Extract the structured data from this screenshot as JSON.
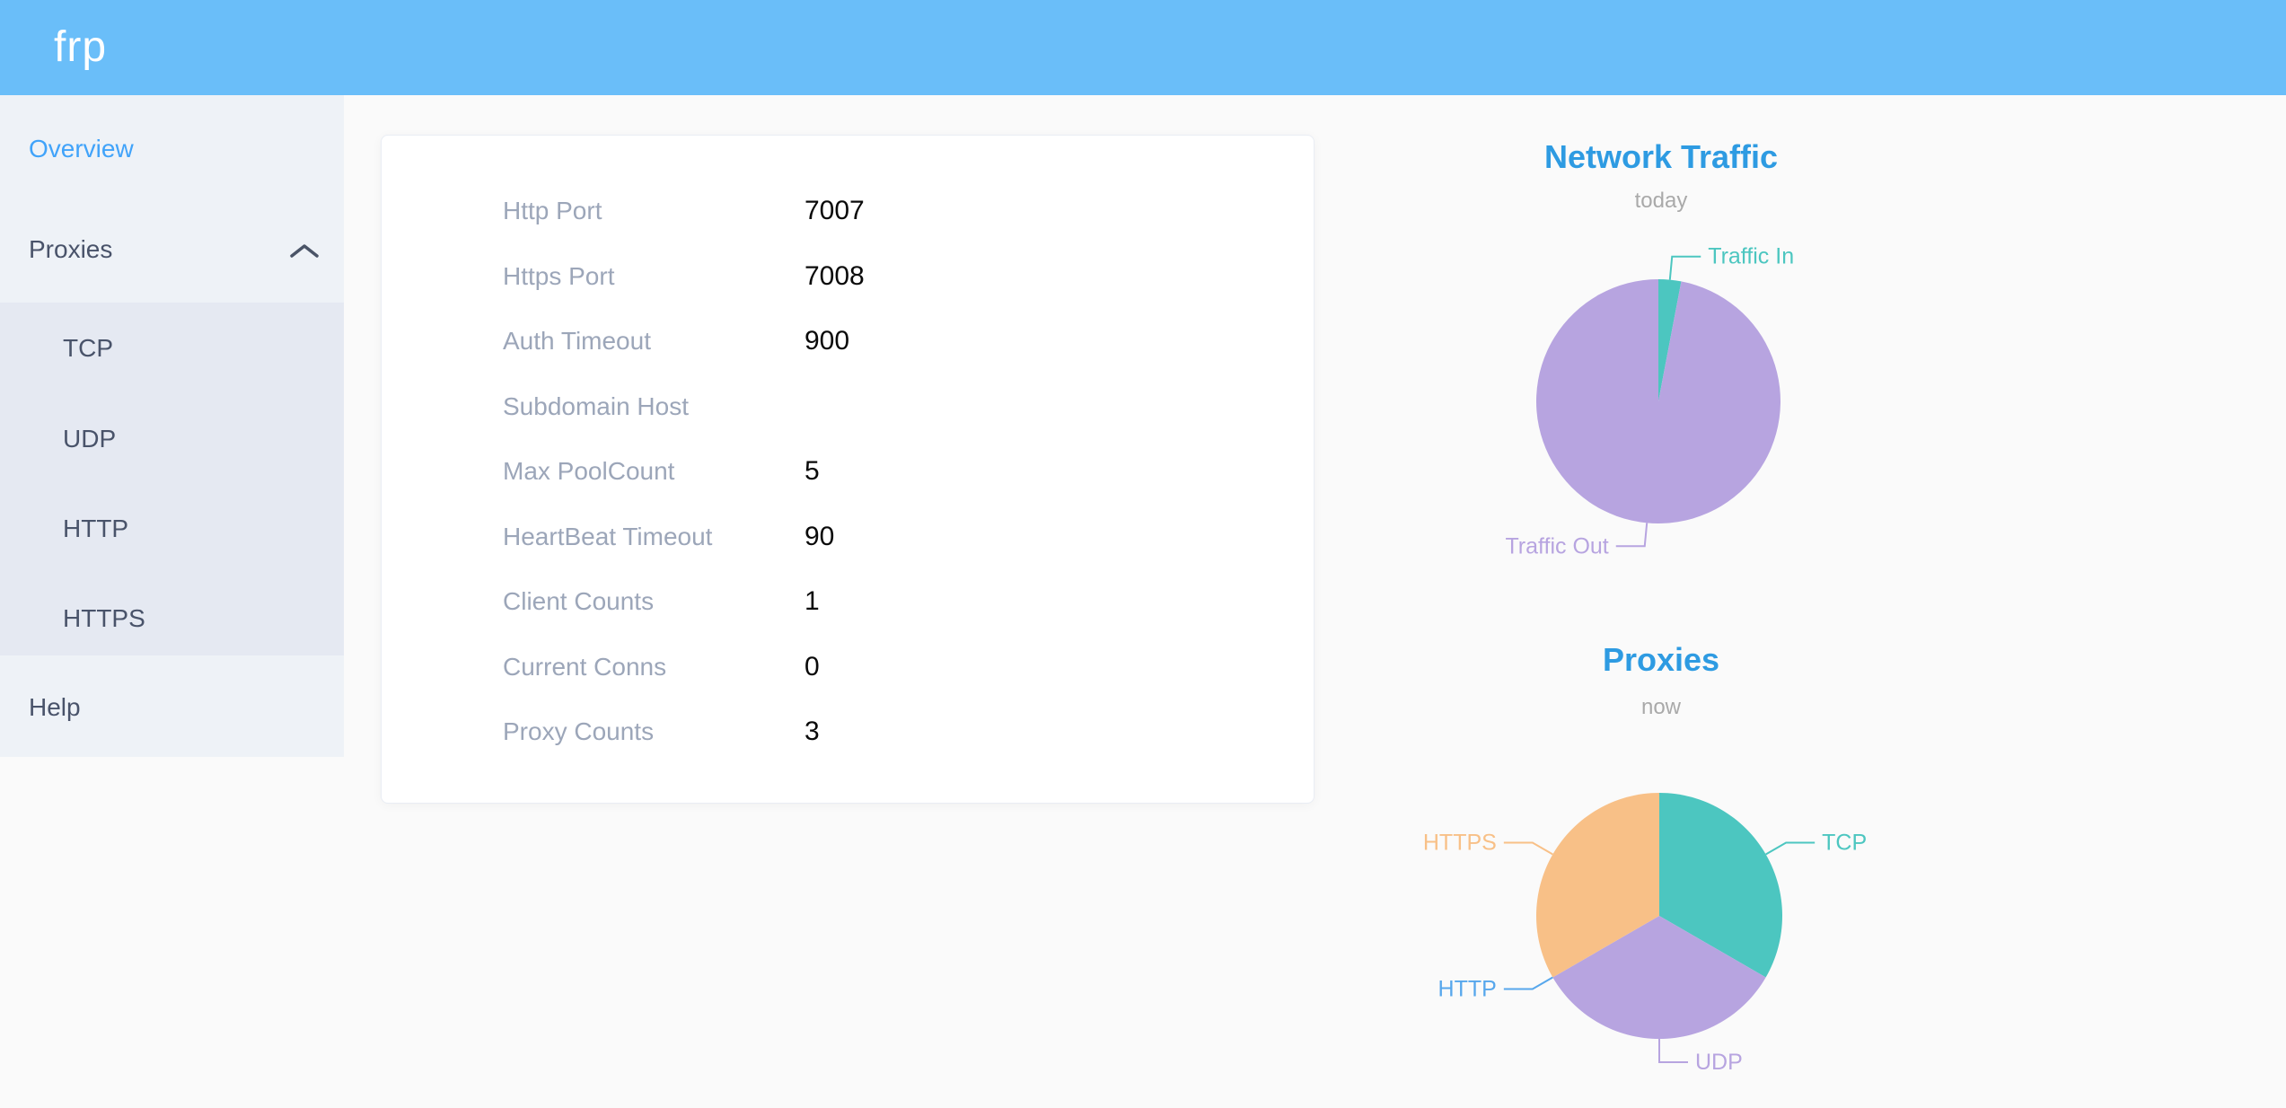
{
  "header": {
    "logo": "frp"
  },
  "sidebar": {
    "overview": "Overview",
    "proxies": "Proxies",
    "submenu": [
      "TCP",
      "UDP",
      "HTTP",
      "HTTPS"
    ],
    "help": "Help",
    "icons": {
      "proxies_state": "chevron-up-icon"
    }
  },
  "card": {
    "rows": [
      {
        "label": "Http Port",
        "value": "7007"
      },
      {
        "label": "Https Port",
        "value": "7008"
      },
      {
        "label": "Auth Timeout",
        "value": "900"
      },
      {
        "label": "Subdomain Host",
        "value": ""
      },
      {
        "label": "Max PoolCount",
        "value": "5"
      },
      {
        "label": "HeartBeat Timeout",
        "value": "90"
      },
      {
        "label": "Client Counts",
        "value": "1"
      },
      {
        "label": "Current Conns",
        "value": "0"
      },
      {
        "label": "Proxy Counts",
        "value": "3"
      }
    ]
  },
  "chart_data": [
    {
      "type": "pie",
      "title": "Network Traffic",
      "subtitle": "today",
      "legend_position": "outside-callout-labels",
      "slices": [
        {
          "label": "Traffic In",
          "value": 3,
          "color": "#4cc6c0"
        },
        {
          "label": "Traffic Out",
          "value": 97,
          "color": "#b7a4e0"
        }
      ]
    },
    {
      "type": "pie",
      "title": "Proxies",
      "subtitle": "now",
      "legend_position": "outside-callout-labels",
      "slices": [
        {
          "label": "TCP",
          "value": 1,
          "color": "#4cc6c0"
        },
        {
          "label": "UDP",
          "value": 1,
          "color": "#b7a4e0"
        },
        {
          "label": "HTTP",
          "value": 0,
          "color": "#57a7ec"
        },
        {
          "label": "HTTPS",
          "value": 1,
          "color": "#f8c087"
        }
      ]
    }
  ],
  "colors": {
    "header_bg": "#6abef9",
    "sidebar_bg": "#eef2f7",
    "submenu_bg": "#e5e9f2",
    "sidebar_text": "#49536a",
    "sidebar_active": "#40a3fa",
    "card_label": "#9ca6b9",
    "card_value": "#0a0a0a",
    "chart_title": "#2e9be2",
    "chart_subtitle": "#a9a9a9"
  }
}
